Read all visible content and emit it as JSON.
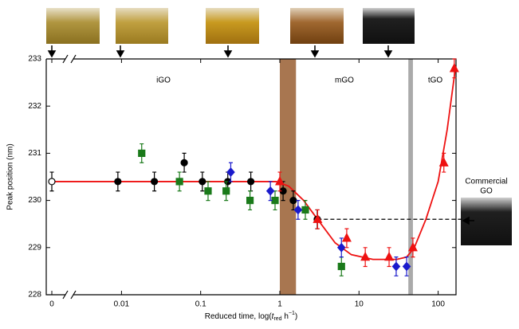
{
  "chart_data": {
    "type": "scatter",
    "y_label": "Peak position (nm)",
    "x_label": {
      "before": "Reduced time, log(",
      "t": "t",
      "sub": "red",
      "mid": " h",
      "sup": "−1",
      "after": ")"
    },
    "log_x": true,
    "axis_break": true,
    "xlim": [
      0,
      175
    ],
    "ylim": [
      228,
      233
    ],
    "xticks": [
      0,
      0.01,
      0.1,
      1,
      10,
      100
    ],
    "yticks": [
      228,
      229,
      230,
      231,
      232,
      233
    ],
    "regions": [
      "iGO",
      "mGO",
      "tGO"
    ],
    "commercial_label": [
      "Commercial",
      "GO"
    ],
    "bands": [
      {
        "x": [
          1.0,
          1.6
        ],
        "color": "#a87650"
      },
      {
        "x": [
          42,
          48
        ],
        "color": "#aaaaaa"
      }
    ],
    "reference_line": {
      "x_start": 3,
      "y": 229.6
    },
    "series": [
      {
        "marker": "circle",
        "color": "#000000",
        "fill": "#ffffff",
        "error": 0.2,
        "x": [
          0
        ],
        "values": [
          230.4
        ]
      },
      {
        "marker": "circle",
        "color": "#000000",
        "fill": "#000000",
        "error": 0.2,
        "x": [
          0.009,
          0.026,
          0.062,
          0.105,
          0.22,
          0.43,
          1.1,
          1.48,
          2.97
        ],
        "values": [
          230.4,
          230.4,
          230.8,
          230.4,
          230.4,
          230.4,
          230.2,
          230.0,
          229.6
        ]
      },
      {
        "marker": "square",
        "color": "#1a7a1a",
        "fill": "#1a7a1a",
        "error": 0.2,
        "x": [
          0.018,
          0.054,
          0.124,
          0.21,
          0.42,
          0.87,
          2.1,
          6.0
        ],
        "values": [
          231.0,
          230.4,
          230.2,
          230.2,
          230.0,
          230.0,
          229.8,
          228.6
        ]
      },
      {
        "marker": "diamond",
        "color": "#1a1acc",
        "fill": "#1a1acc",
        "error": 0.2,
        "x": [
          0.24,
          0.76,
          1.7,
          6.0,
          29.5,
          40
        ],
        "values": [
          230.6,
          230.2,
          229.8,
          229.0,
          228.6,
          228.6
        ]
      },
      {
        "marker": "triangle",
        "color": "#ee1111",
        "fill": "#ee1111",
        "error": 0.2,
        "x": [
          1,
          3,
          7,
          12,
          24,
          48,
          118,
          160
        ],
        "values": [
          230.4,
          229.6,
          229.2,
          228.8,
          228.8,
          229.0,
          230.8,
          232.8
        ]
      },
      {
        "marker": "line",
        "color": "#ee1111",
        "x": [
          0,
          0.9,
          1.3,
          2,
          3,
          5,
          8,
          15,
          30,
          40,
          50,
          70,
          100,
          130,
          165
        ],
        "values": [
          230.4,
          230.4,
          230.3,
          230.0,
          229.6,
          229.1,
          228.85,
          228.75,
          228.75,
          228.8,
          229.0,
          229.6,
          230.4,
          231.5,
          232.8
        ]
      }
    ]
  }
}
